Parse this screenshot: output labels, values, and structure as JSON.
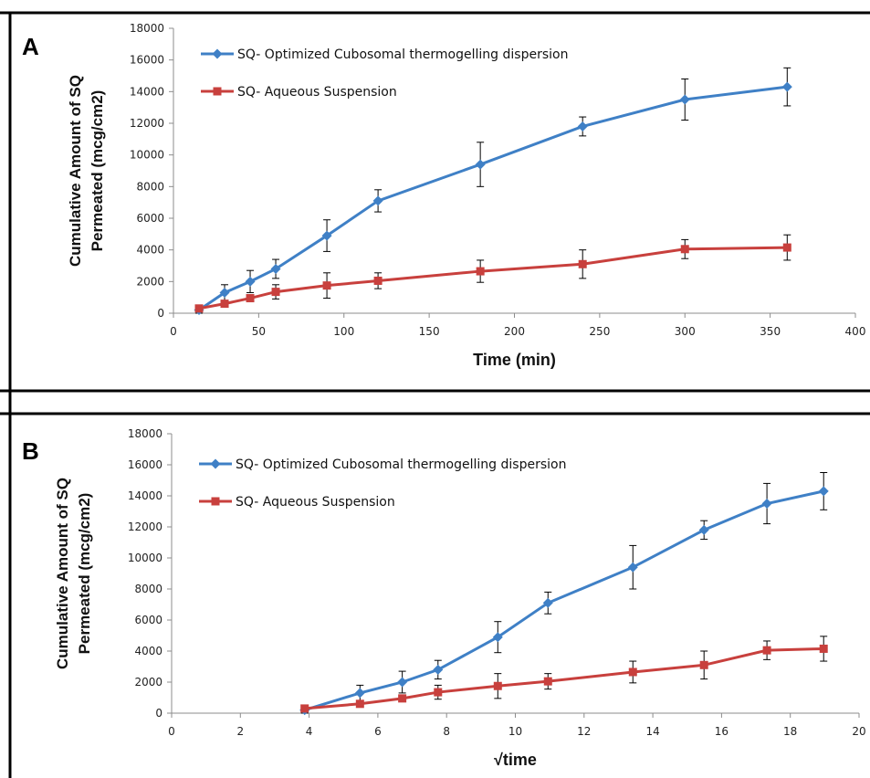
{
  "chart_data": [
    {
      "panel": "A",
      "type": "line",
      "xlabel": "Time (min)",
      "ylabel_lines": [
        "Cumulative Amount of SQ",
        "Permeated (mcg/cm2)"
      ],
      "xlim": [
        0,
        400
      ],
      "ylim": [
        0,
        18000
      ],
      "xticks": [
        0,
        50,
        100,
        150,
        200,
        250,
        300,
        350,
        400
      ],
      "yticks": [
        0,
        2000,
        4000,
        6000,
        8000,
        10000,
        12000,
        14000,
        16000,
        18000
      ],
      "grid": false,
      "legend": "top-left",
      "x": [
        15,
        30,
        45,
        60,
        90,
        120,
        180,
        240,
        300,
        360
      ],
      "series": [
        {
          "name": "SQ- Optimized Cubosomal thermogelling dispersion",
          "color": "#3f80c6",
          "marker": "diamond",
          "values": [
            200,
            1300,
            2000,
            2800,
            4900,
            7100,
            9400,
            11800,
            13500,
            14300
          ],
          "errors": [
            200,
            500,
            700,
            600,
            1000,
            700,
            1400,
            600,
            1300,
            1200
          ]
        },
        {
          "name": "SQ- Aqueous Suspension",
          "color": "#c8403d",
          "marker": "square",
          "values": [
            300,
            600,
            950,
            1350,
            1750,
            2050,
            2650,
            3100,
            4050,
            4150
          ],
          "errors": [
            0,
            0,
            0,
            450,
            800,
            500,
            700,
            900,
            600,
            800
          ]
        }
      ]
    },
    {
      "panel": "B",
      "type": "line",
      "xlabel": "√time",
      "ylabel_lines": [
        "Cumulative Amount of SQ",
        "Permeated (mcg/cm2)"
      ],
      "xlim": [
        0,
        20
      ],
      "ylim": [
        0,
        18000
      ],
      "xticks": [
        0,
        2,
        4,
        6,
        8,
        10,
        12,
        14,
        16,
        18,
        20
      ],
      "yticks": [
        0,
        2000,
        4000,
        6000,
        8000,
        10000,
        12000,
        14000,
        16000,
        18000
      ],
      "grid": false,
      "legend": "top-left",
      "x": [
        3.87,
        5.48,
        6.71,
        7.75,
        9.49,
        10.95,
        13.42,
        15.49,
        17.32,
        18.97
      ],
      "series": [
        {
          "name": "SQ- Optimized Cubosomal thermogelling dispersion",
          "color": "#3f80c6",
          "marker": "diamond",
          "values": [
            200,
            1300,
            2000,
            2800,
            4900,
            7100,
            9400,
            11800,
            13500,
            14300
          ],
          "errors": [
            200,
            500,
            700,
            600,
            1000,
            700,
            1400,
            600,
            1300,
            1200
          ]
        },
        {
          "name": "SQ- Aqueous Suspension",
          "color": "#c8403d",
          "marker": "square",
          "values": [
            300,
            600,
            950,
            1350,
            1750,
            2050,
            2650,
            3100,
            4050,
            4150
          ],
          "errors": [
            0,
            0,
            0,
            450,
            800,
            500,
            700,
            900,
            600,
            800
          ]
        }
      ]
    }
  ]
}
